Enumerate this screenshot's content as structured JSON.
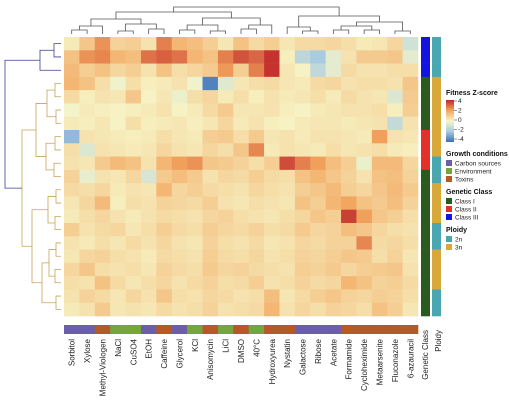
{
  "chart_data": {
    "type": "heatmap",
    "columns": [
      "Sorbitol",
      "Xylose",
      "Methyl-Viologen",
      "NaCl",
      "CuSO4",
      "EtOH",
      "Caffeine",
      "Glycerol",
      "KCl",
      "Anisomycin",
      "LiCl",
      "DMSO",
      "40°C",
      "Hydroxyurea",
      "Nystatin",
      "Galactose",
      "Ribose",
      "Acetate",
      "Formamide",
      "Cycloheximide",
      "Metaarsenite",
      "Fluconazole",
      "6-azauracil"
    ],
    "column_condition": [
      "Carbon sources",
      "Carbon sources",
      "Toxins",
      "Environment",
      "Environment",
      "Carbon sources",
      "Toxins",
      "Carbon sources",
      "Environment",
      "Toxins",
      "Environment",
      "Toxins",
      "Environment",
      "Toxins",
      "Toxins",
      "Carbon sources",
      "Carbon sources",
      "Carbon sources",
      "Toxins",
      "Toxins",
      "Toxins",
      "Toxins",
      "Toxins"
    ],
    "row_genetic_class": [
      "Class III",
      "Class III",
      "Class III",
      "Class I",
      "Class I",
      "Class I",
      "Class I",
      "Class II",
      "Class II",
      "Class II",
      "Class I",
      "Class I",
      "Class I",
      "Class I",
      "Class I",
      "Class I",
      "Class I",
      "Class I",
      "Class I",
      "Class I",
      "Class I"
    ],
    "row_ploidy": [
      "2n",
      "2n",
      "2n",
      "3n",
      "3n",
      "3n",
      "3n",
      "3n",
      "3n",
      "2n",
      "2n",
      "3n",
      "3n",
      "3n",
      "2n",
      "2n",
      "3n",
      "3n",
      "3n",
      "2n",
      "2n"
    ],
    "values": [
      [
        0.3,
        1.2,
        2.3,
        0.9,
        1.0,
        0.5,
        2.6,
        1.6,
        1.4,
        1.0,
        0.4,
        1.3,
        0.7,
        1.0,
        0.4,
        0.7,
        0.7,
        0.8,
        0.6,
        0.3,
        0.4,
        0.8,
        -1.0
      ],
      [
        1.3,
        2.3,
        2.5,
        1.6,
        1.4,
        2.8,
        3.1,
        2.8,
        1.6,
        1.3,
        2.6,
        3.3,
        3.0,
        3.8,
        0.2,
        -1.5,
        -2.0,
        -0.5,
        0.5,
        1.1,
        1.1,
        1.2,
        -0.5
      ],
      [
        1.5,
        1.0,
        1.3,
        0.8,
        1.0,
        0.5,
        1.3,
        0.6,
        0.8,
        1.1,
        2.2,
        1.0,
        2.6,
        3.8,
        0.4,
        0.1,
        -1.4,
        -0.5,
        0.7,
        0.5,
        0.5,
        0.6,
        0.6
      ],
      [
        1.6,
        1.3,
        0.6,
        -0.2,
        0.6,
        0.2,
        0.3,
        0.5,
        -0.2,
        -3.6,
        -0.6,
        0.4,
        0.6,
        0.7,
        0.4,
        0.3,
        0.7,
        0.8,
        0.5,
        0.6,
        0.6,
        0.5,
        1.2
      ],
      [
        0.7,
        0.2,
        0.5,
        0.4,
        1.2,
        0.1,
        0.4,
        -0.3,
        0.6,
        0.8,
        0.3,
        0.6,
        0.2,
        0.5,
        0.3,
        0.4,
        0.6,
        0.3,
        0.7,
        0.5,
        0.4,
        -0.7,
        1.1
      ],
      [
        -0.1,
        0.3,
        0.2,
        0.1,
        0.2,
        0.3,
        0.5,
        0.1,
        0.3,
        0.7,
        1.1,
        0.4,
        0.4,
        0.5,
        0.2,
        0.1,
        0.3,
        0.4,
        0.5,
        0.5,
        0.6,
        0.2,
        1.0
      ],
      [
        0.3,
        0.2,
        0.4,
        0.1,
        0.6,
        0.2,
        0.3,
        0.4,
        0.2,
        0.4,
        0.8,
        0.3,
        0.5,
        0.2,
        0.1,
        0.3,
        0.4,
        0.4,
        0.3,
        0.4,
        0.5,
        -1.3,
        0.5
      ],
      [
        -2.4,
        0.5,
        0.4,
        0.3,
        0.2,
        0.3,
        0.6,
        0.4,
        0.3,
        1.0,
        1.1,
        0.6,
        1.1,
        0.4,
        0.5,
        0.3,
        0.5,
        0.5,
        0.4,
        0.3,
        2.1,
        0.5,
        0.4
      ],
      [
        0.6,
        -0.7,
        0.5,
        0.4,
        0.3,
        0.4,
        0.8,
        0.5,
        0.4,
        0.8,
        0.6,
        1.2,
        2.5,
        0.3,
        0.5,
        0.4,
        0.3,
        0.6,
        0.4,
        0.5,
        0.6,
        0.3,
        0.2
      ],
      [
        0.5,
        0.4,
        1.1,
        1.5,
        1.3,
        0.5,
        1.6,
        2.1,
        2.3,
        1.2,
        1.1,
        0.9,
        0.6,
        1.0,
        3.4,
        2.6,
        2.1,
        1.4,
        1.0,
        -0.3,
        1.5,
        1.5,
        0.8
      ],
      [
        0.9,
        -0.4,
        0.5,
        0.4,
        0.8,
        -0.8,
        1.1,
        1.4,
        1.1,
        0.5,
        0.8,
        0.7,
        1.0,
        0.7,
        0.6,
        1.3,
        1.6,
        1.2,
        0.9,
        0.5,
        1.3,
        1.4,
        0.9
      ],
      [
        0.7,
        0.6,
        0.8,
        0.3,
        0.5,
        0.4,
        1.6,
        0.8,
        1.0,
        0.7,
        0.6,
        0.5,
        0.8,
        0.6,
        0.5,
        1.0,
        1.2,
        1.5,
        1.0,
        0.8,
        1.2,
        1.5,
        1.1
      ],
      [
        0.4,
        0.8,
        1.5,
        0.2,
        0.6,
        0.5,
        0.9,
        0.8,
        0.7,
        1.0,
        0.5,
        0.4,
        0.6,
        0.5,
        0.4,
        1.3,
        1.0,
        1.6,
        2.0,
        1.3,
        1.1,
        1.4,
        0.9
      ],
      [
        0.3,
        0.6,
        0.8,
        0.5,
        0.3,
        0.5,
        0.7,
        0.6,
        0.5,
        0.8,
        0.9,
        0.6,
        0.5,
        0.4,
        0.6,
        0.8,
        1.2,
        1.0,
        3.6,
        2.1,
        1.2,
        1.0,
        0.6
      ],
      [
        1.0,
        0.5,
        0.7,
        0.8,
        0.4,
        0.6,
        1.0,
        0.7,
        0.6,
        1.0,
        0.8,
        0.7,
        0.9,
        0.6,
        0.7,
        1.1,
        0.8,
        0.9,
        1.4,
        1.2,
        0.8,
        0.6,
        0.5
      ],
      [
        0.5,
        0.3,
        0.6,
        0.4,
        0.7,
        0.5,
        0.8,
        0.5,
        0.4,
        0.9,
        0.6,
        0.5,
        0.7,
        0.4,
        0.5,
        0.8,
        0.7,
        0.9,
        0.9,
        2.5,
        0.7,
        0.8,
        0.6
      ],
      [
        0.4,
        0.8,
        0.9,
        0.6,
        0.5,
        0.3,
        0.7,
        0.6,
        0.5,
        1.0,
        0.7,
        0.6,
        0.8,
        0.5,
        0.6,
        0.9,
        0.8,
        1.0,
        1.2,
        1.1,
        0.6,
        0.9,
        0.4
      ],
      [
        0.8,
        1.2,
        0.6,
        0.5,
        0.6,
        0.4,
        0.9,
        0.7,
        0.6,
        1.1,
        0.8,
        0.9,
        0.7,
        0.6,
        0.5,
        1.0,
        0.9,
        1.1,
        0.8,
        1.0,
        1.1,
        1.2,
        0.5
      ],
      [
        0.6,
        0.5,
        1.3,
        0.7,
        0.4,
        0.6,
        0.8,
        0.5,
        0.7,
        0.9,
        0.6,
        0.7,
        1.0,
        0.5,
        0.6,
        0.9,
        0.7,
        0.8,
        1.6,
        1.3,
        0.9,
        1.0,
        0.7
      ],
      [
        0.5,
        0.9,
        0.7,
        0.4,
        0.8,
        0.5,
        1.2,
        0.6,
        0.5,
        0.8,
        0.7,
        0.5,
        0.6,
        1.4,
        0.4,
        0.7,
        1.0,
        1.2,
        0.9,
        0.8,
        1.0,
        0.9,
        0.6
      ],
      [
        0.3,
        0.5,
        1.1,
        0.4,
        0.5,
        0.4,
        0.7,
        0.5,
        0.6,
        0.9,
        0.5,
        0.6,
        0.7,
        1.6,
        0.5,
        0.8,
        0.6,
        0.9,
        0.8,
        0.6,
        1.3,
        1.0,
        0.4
      ]
    ],
    "color_scale": {
      "min": -4,
      "max": 4,
      "colors": [
        "#3b6fb6",
        "#a9cbe0",
        "#f7f6c9",
        "#f2a65e",
        "#c0262a"
      ]
    },
    "legend": {
      "zscore_title": "Fitness Z-score",
      "zscore_ticks": [
        "4",
        "2",
        "0",
        "-2",
        "-4"
      ],
      "growth_title": "Growth conditions",
      "growth_items": [
        {
          "label": "Carbon sources",
          "color": "#6b5fa8"
        },
        {
          "label": "Environment",
          "color": "#76a63a"
        },
        {
          "label": "Toxins",
          "color": "#b35a25"
        }
      ],
      "class_title": "Genetic Class",
      "class_items": [
        {
          "label": "Class I",
          "color": "#2b5a1f"
        },
        {
          "label": "Class II",
          "color": "#e5302a"
        },
        {
          "label": "Class III",
          "color": "#1414e0"
        }
      ],
      "ploidy_title": "Ploidy",
      "ploidy_items": [
        {
          "label": "2n",
          "color": "#4aa6b0"
        },
        {
          "label": "3n",
          "color": "#d8a93a"
        }
      ]
    },
    "side_labels": {
      "genetic_class": "Genetic Class",
      "ploidy": "Ploidy"
    },
    "dendrogram_colors": {
      "rows_top": "#3b3f9a",
      "rows_bottom": "#c9a257",
      "columns": "#555555"
    }
  }
}
